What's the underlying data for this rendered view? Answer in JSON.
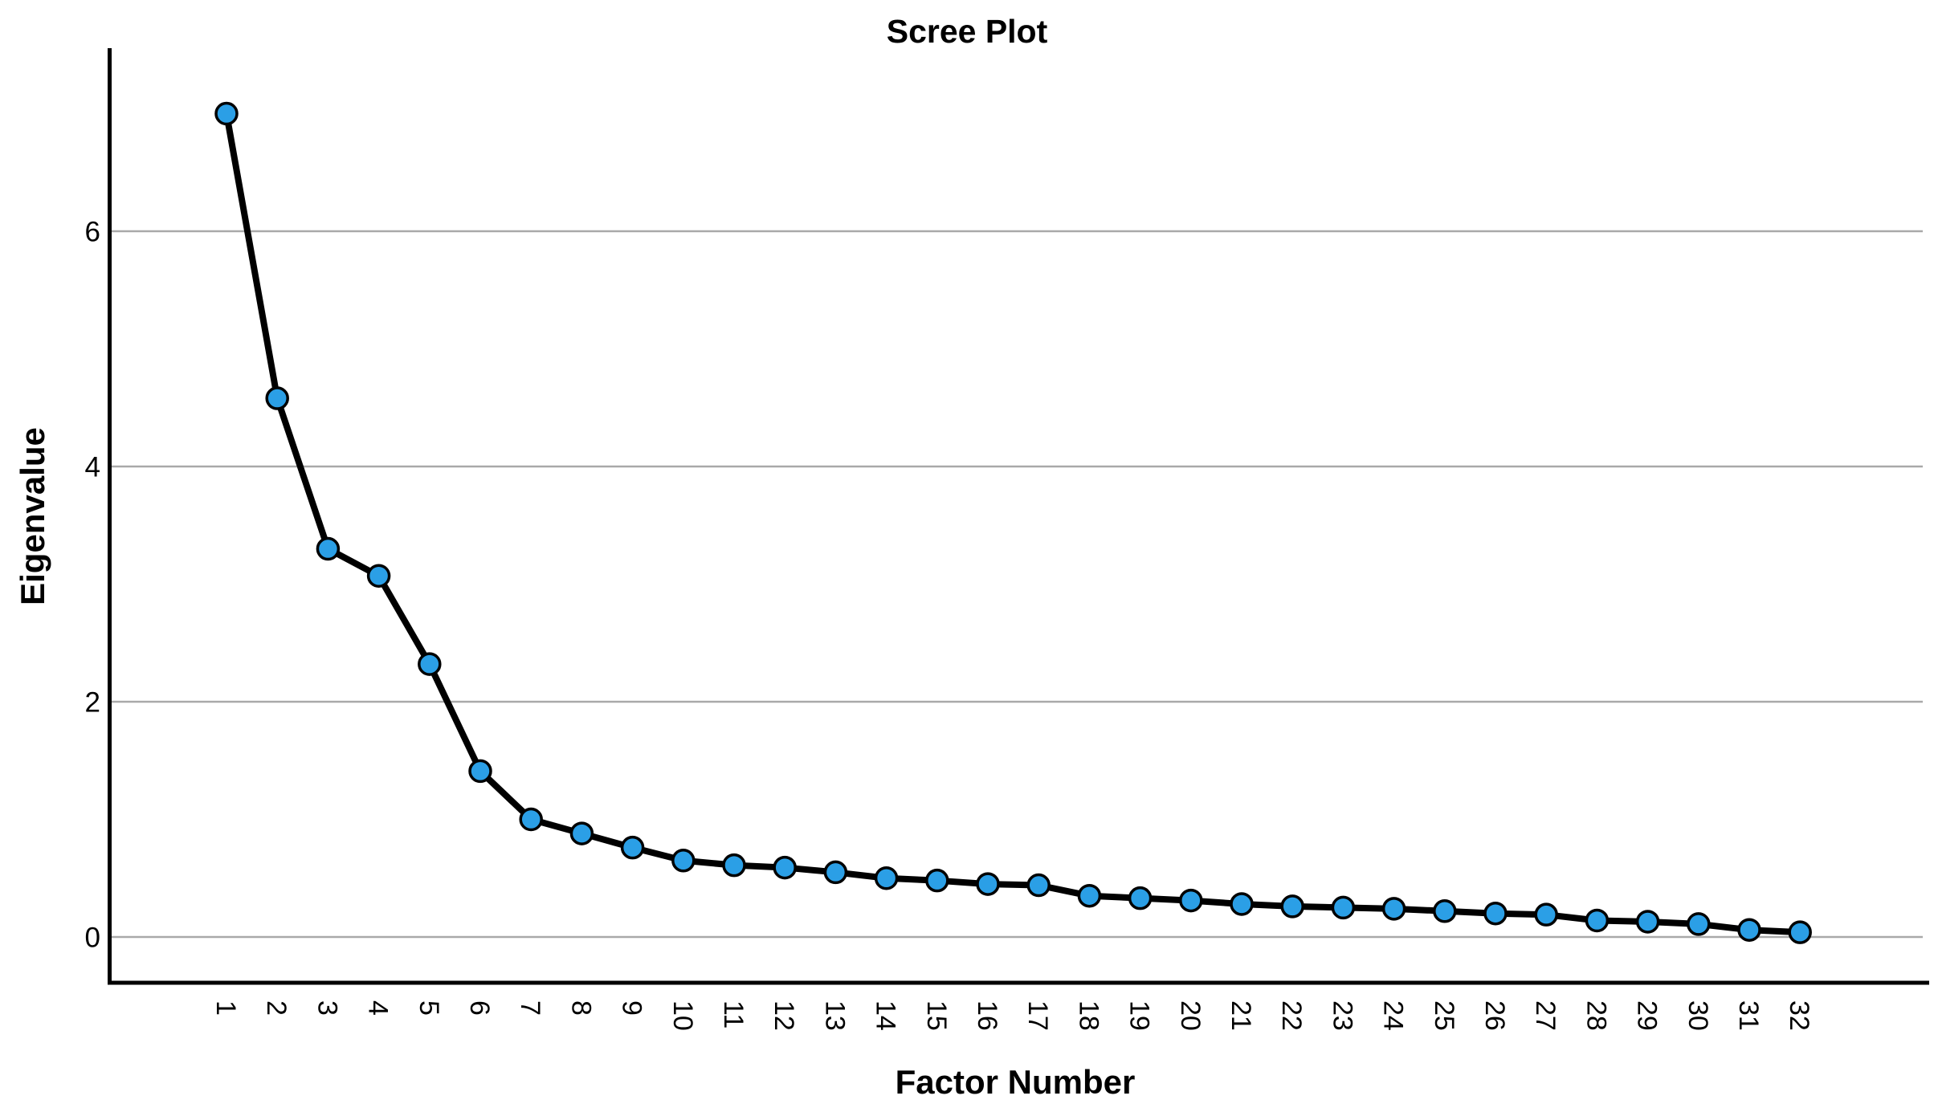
{
  "chart_data": {
    "type": "line",
    "title": "Scree Plot",
    "xlabel": "Factor Number",
    "ylabel": "Eigenvalue",
    "x": [
      1,
      2,
      3,
      4,
      5,
      6,
      7,
      8,
      9,
      10,
      11,
      12,
      13,
      14,
      15,
      16,
      17,
      18,
      19,
      20,
      21,
      22,
      23,
      24,
      25,
      26,
      27,
      28,
      29,
      30,
      31,
      32
    ],
    "series": [
      {
        "name": "Eigenvalue",
        "values": [
          7.0,
          4.58,
          3.3,
          3.07,
          2.32,
          1.41,
          1.0,
          0.88,
          0.76,
          0.65,
          0.61,
          0.59,
          0.55,
          0.5,
          0.48,
          0.45,
          0.44,
          0.35,
          0.33,
          0.31,
          0.28,
          0.26,
          0.25,
          0.24,
          0.22,
          0.2,
          0.19,
          0.14,
          0.13,
          0.11,
          0.06,
          0.04
        ]
      }
    ],
    "yticks": [
      0,
      2,
      4,
      6
    ],
    "ylim": [
      -0.4,
      7.55
    ],
    "xlim": [
      0,
      33
    ],
    "grid": "horizontal",
    "legend": "none",
    "marker": "circle",
    "styles": {
      "line_color": "#000000",
      "marker_fill": "#2b9fe6",
      "marker_stroke": "#000000",
      "gridline_color": "#a9a9a9",
      "axis_color": "#000000",
      "text_color": "#000000"
    }
  }
}
